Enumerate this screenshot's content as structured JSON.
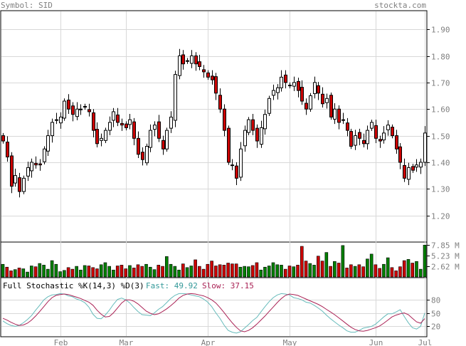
{
  "header": {
    "symbol_label": "Symbol: SID",
    "brand": "stockta.com"
  },
  "colors": {
    "up_fill": "#ffffff",
    "down_fill": "#cc0000",
    "candle_outline": "#000000",
    "volume_up": "#008000",
    "volume_down": "#cc0000",
    "grid": "#d8d8d8",
    "axis_text": "#808080",
    "fast_line": "#66bbbb",
    "slow_line": "#aa2255",
    "label_fast": "#339999",
    "label_slow": "#aa2255"
  },
  "chart_data": [
    {
      "type": "candlestick",
      "panel": "price",
      "ylim": [
        1.1,
        1.97
      ],
      "y_ticks": [
        "1.90",
        "1.80",
        "1.70",
        "1.60",
        "1.50",
        "1.40",
        "1.30",
        "1.20"
      ],
      "x_month_labels": [
        "Feb",
        "Mar",
        "Apr",
        "May",
        "Jun",
        "Jul"
      ],
      "grid": true,
      "series_close": [
        1.48,
        1.42,
        1.31,
        1.35,
        1.29,
        1.34,
        1.38,
        1.4,
        1.39,
        1.39,
        1.45,
        1.5,
        1.55,
        1.56,
        1.57,
        1.63,
        1.6,
        1.58,
        1.6,
        1.6,
        1.61,
        1.59,
        1.52,
        1.47,
        1.49,
        1.52,
        1.55,
        1.59,
        1.55,
        1.54,
        1.53,
        1.56,
        1.49,
        1.43,
        1.41,
        1.46,
        1.52,
        1.54,
        1.49,
        1.45,
        1.52,
        1.57,
        1.73,
        1.8,
        1.77,
        1.78,
        1.8,
        1.77,
        1.76,
        1.74,
        1.72,
        1.71,
        1.66,
        1.6,
        1.52,
        1.4,
        1.39,
        1.34,
        1.45,
        1.52,
        1.56,
        1.52,
        1.48,
        1.53,
        1.58,
        1.64,
        1.67,
        1.68,
        1.72,
        1.7,
        1.69,
        1.7,
        1.67,
        1.63,
        1.6,
        1.65,
        1.7,
        1.66,
        1.62,
        1.64,
        1.57,
        1.6,
        1.55,
        1.56,
        1.52,
        1.46,
        1.5,
        1.49,
        1.47,
        1.52,
        1.55,
        1.49,
        1.48,
        1.51,
        1.54,
        1.5,
        1.45,
        1.4,
        1.34,
        1.38,
        1.37,
        1.39,
        1.4,
        1.51
      ],
      "series_volume_millions": [
        3.1,
        2.4,
        1.5,
        1.8,
        2.2,
        2.0,
        1.2,
        2.7,
        2.5,
        3.3,
        2.9,
        1.9,
        4.0,
        3.1,
        1.3,
        1.6,
        2.3,
        1.9,
        2.6,
        1.7,
        2.8,
        2.7,
        2.3,
        2.0,
        3.0,
        3.5,
        2.6,
        1.7,
        2.7,
        2.9,
        2.0,
        2.8,
        2.2,
        3.0,
        2.6,
        3.1,
        2.4,
        1.8,
        2.9,
        2.6,
        5.0,
        3.1,
        2.6,
        1.7,
        3.2,
        2.3,
        2.7,
        4.2,
        2.6,
        1.9,
        3.1,
        3.9,
        2.7,
        3.0,
        2.9,
        3.4,
        3.2,
        3.2,
        2.4,
        2.6,
        2.5,
        2.8,
        3.5,
        1.7,
        2.4,
        2.7,
        3.5,
        3.0,
        2.9,
        1.9,
        2.7,
        2.5,
        2.9,
        7.5,
        3.9,
        3.3,
        2.9,
        5.1,
        3.9,
        6.0,
        2.6,
        3.8,
        3.4,
        7.7,
        2.2,
        3.0,
        2.6,
        3.0,
        2.5,
        4.4,
        5.6,
        3.0,
        2.1,
        3.1,
        4.7,
        2.3,
        1.5,
        2.5,
        4.0,
        4.3,
        3.4,
        3.8,
        1.9,
        7.8
      ]
    },
    {
      "type": "bar",
      "panel": "volume",
      "y_ticks": [
        "7.85 M",
        "5.23 M",
        "2.62 M"
      ],
      "ylim": [
        0,
        7.85
      ]
    },
    {
      "type": "line",
      "panel": "stochastic",
      "label": "Full Stochastic %K(14,3) %D(3)",
      "fast_label": "Fast: 49.92",
      "slow_label": "Slow: 37.15",
      "ylim": [
        0,
        100
      ],
      "y_ticks": [
        "80",
        "50",
        "20"
      ],
      "fast": [
        32,
        26,
        22,
        20,
        22,
        28,
        35,
        44,
        56,
        67,
        79,
        86,
        90,
        91,
        93,
        92,
        88,
        86,
        81,
        78,
        73,
        63,
        47,
        38,
        37,
        45,
        56,
        69,
        80,
        83,
        79,
        72,
        62,
        53,
        46,
        45,
        44,
        50,
        58,
        64,
        73,
        82,
        89,
        93,
        93,
        92,
        90,
        88,
        86,
        81,
        74,
        64,
        50,
        38,
        23,
        11,
        7,
        5,
        8,
        16,
        24,
        33,
        40,
        52,
        64,
        75,
        84,
        90,
        93,
        92,
        90,
        84,
        82,
        79,
        74,
        72,
        67,
        61,
        54,
        45,
        37,
        30,
        23,
        17,
        10,
        7,
        7,
        11,
        16,
        18,
        20,
        25,
        33,
        41,
        48,
        48,
        52,
        57,
        42,
        28,
        17,
        14,
        20,
        49.92
      ],
      "slow": [
        38,
        34,
        29,
        25,
        22,
        23,
        27,
        34,
        43,
        53,
        64,
        75,
        84,
        89,
        91,
        92,
        91,
        88,
        85,
        82,
        78,
        74,
        67,
        56,
        47,
        41,
        42,
        50,
        61,
        72,
        79,
        79,
        76,
        70,
        62,
        54,
        49,
        46,
        48,
        53,
        59,
        66,
        74,
        83,
        89,
        92,
        93,
        92,
        90,
        88,
        84,
        79,
        72,
        62,
        51,
        39,
        28,
        18,
        10,
        8,
        11,
        17,
        25,
        34,
        43,
        53,
        63,
        73,
        82,
        89,
        92,
        91,
        89,
        85,
        81,
        77,
        73,
        69,
        64,
        58,
        52,
        46,
        39,
        32,
        25,
        18,
        13,
        10,
        9,
        11,
        14,
        17,
        21,
        27,
        34,
        41,
        45,
        48,
        50,
        46,
        38,
        30,
        27,
        37.15
      ]
    }
  ]
}
